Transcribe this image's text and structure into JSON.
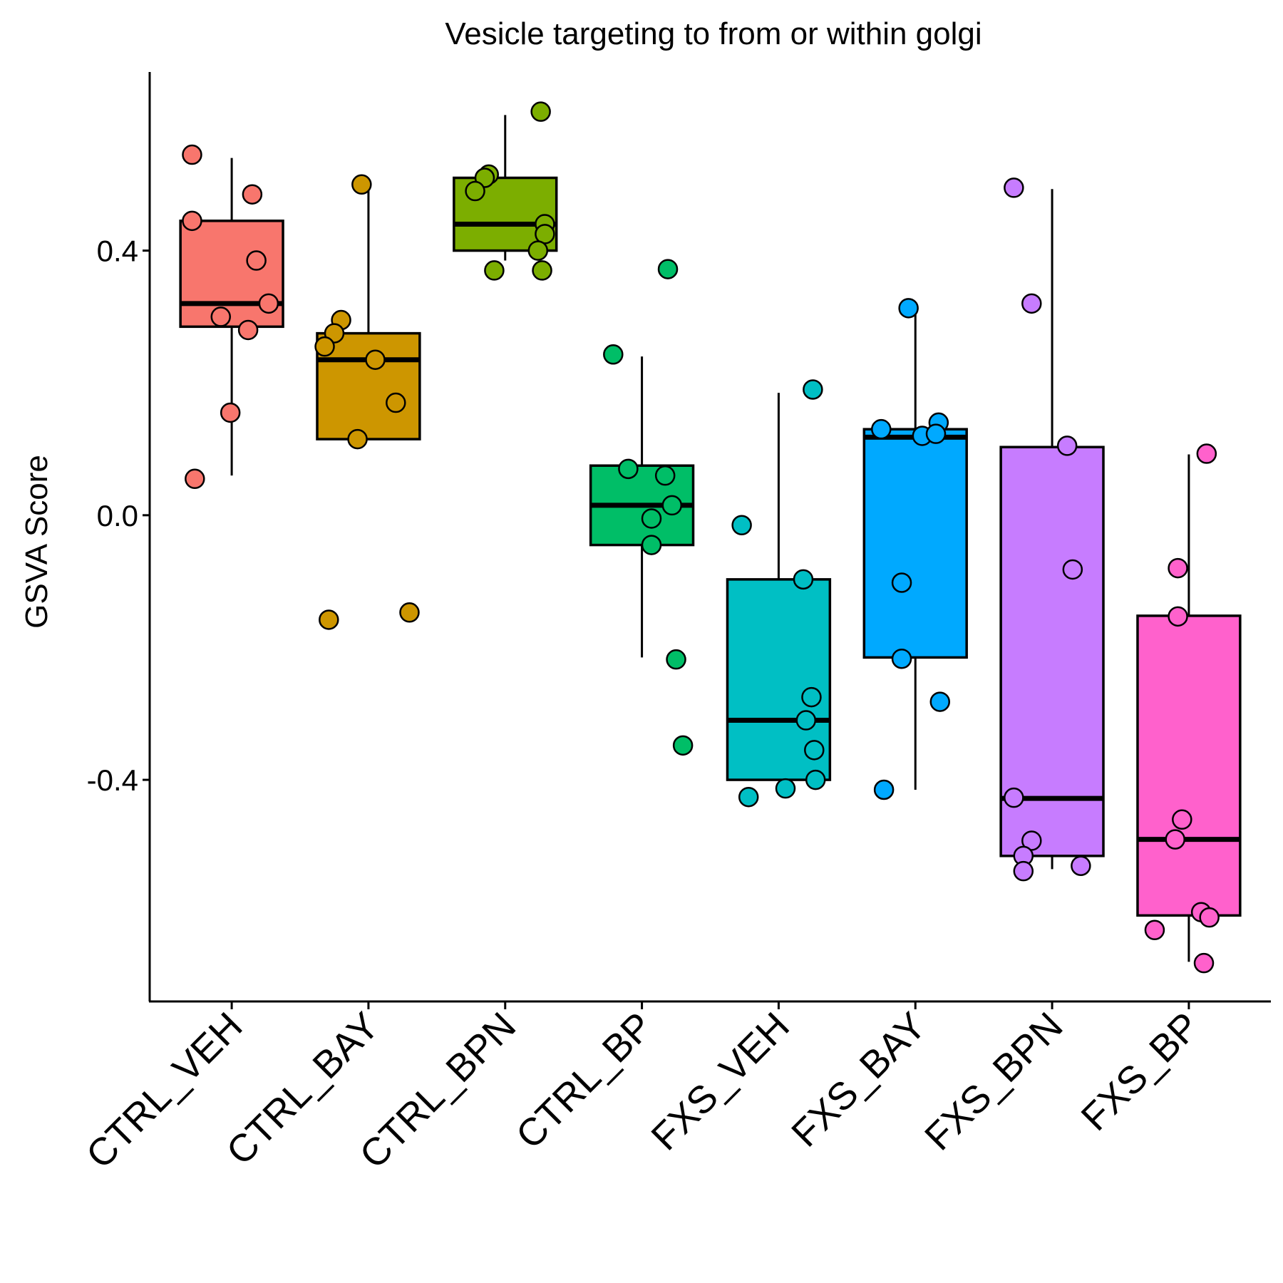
{
  "chart_data": {
    "type": "box",
    "title": "Vesicle targeting to from or within golgi",
    "xlabel": "",
    "ylabel": "GSVA Score",
    "ylim": [
      -0.735,
      0.67
    ],
    "yticks": [
      -0.4,
      0.0,
      0.4
    ],
    "ytick_labels": [
      "-0.4",
      "0.0",
      "0.4"
    ],
    "grid": false,
    "legend": "none",
    "categories": [
      "CTRL_VEH",
      "CTRL_BAY",
      "CTRL_BPN",
      "CTRL_BP",
      "FXS_VEH",
      "FXS_BAY",
      "FXS_BPN",
      "FXS_BP"
    ],
    "groups": [
      {
        "name": "CTRL_VEH",
        "color": "#F8766D",
        "box": {
          "whisker_low": 0.06,
          "q1": 0.285,
          "median": 0.32,
          "q3": 0.445,
          "whisker_high": 0.54
        },
        "points": [
          [
            -0.29,
            0.545
          ],
          [
            0.15,
            0.485
          ],
          [
            -0.29,
            0.445
          ],
          [
            0.18,
            0.385
          ],
          [
            0.27,
            0.32
          ],
          [
            -0.08,
            0.3
          ],
          [
            0.12,
            0.28
          ],
          [
            -0.01,
            0.155
          ],
          [
            -0.27,
            0.055
          ]
        ]
      },
      {
        "name": "CTRL_BAY",
        "color": "#CD9600",
        "box": {
          "whisker_low": 0.115,
          "q1": 0.115,
          "median": 0.235,
          "q3": 0.275,
          "whisker_high": 0.5
        },
        "points": [
          [
            -0.05,
            0.5
          ],
          [
            -0.2,
            0.295
          ],
          [
            -0.25,
            0.275
          ],
          [
            -0.32,
            0.255
          ],
          [
            0.05,
            0.235
          ],
          [
            0.2,
            0.17
          ],
          [
            -0.08,
            0.115
          ],
          [
            -0.29,
            -0.158
          ],
          [
            0.3,
            -0.147
          ]
        ]
      },
      {
        "name": "CTRL_BPN",
        "color": "#7CAE00",
        "box": {
          "whisker_low": 0.385,
          "q1": 0.4,
          "median": 0.44,
          "q3": 0.51,
          "whisker_high": 0.605
        },
        "points": [
          [
            0.26,
            0.61
          ],
          [
            -0.12,
            0.515
          ],
          [
            -0.15,
            0.51
          ],
          [
            -0.22,
            0.49
          ],
          [
            0.29,
            0.44
          ],
          [
            0.29,
            0.425
          ],
          [
            0.24,
            0.4
          ],
          [
            -0.08,
            0.37
          ],
          [
            0.27,
            0.37
          ]
        ]
      },
      {
        "name": "CTRL_BP",
        "color": "#00BE67",
        "box": {
          "whisker_low": -0.215,
          "q1": -0.045,
          "median": 0.015,
          "q3": 0.075,
          "whisker_high": 0.24
        },
        "points": [
          [
            0.19,
            0.372
          ],
          [
            -0.21,
            0.243
          ],
          [
            -0.1,
            0.07
          ],
          [
            0.17,
            0.06
          ],
          [
            0.22,
            0.015
          ],
          [
            0.07,
            -0.005
          ],
          [
            0.07,
            -0.045
          ],
          [
            0.25,
            -0.218
          ],
          [
            0.3,
            -0.348
          ]
        ]
      },
      {
        "name": "FXS_VEH",
        "color": "#00BFC4",
        "box": {
          "whisker_low": -0.4,
          "q1": -0.4,
          "median": -0.31,
          "q3": -0.097,
          "whisker_high": 0.185
        },
        "points": [
          [
            0.25,
            0.19
          ],
          [
            -0.27,
            -0.015
          ],
          [
            0.18,
            -0.097
          ],
          [
            0.24,
            -0.275
          ],
          [
            0.2,
            -0.31
          ],
          [
            0.26,
            -0.355
          ],
          [
            0.27,
            -0.4
          ],
          [
            0.05,
            -0.413
          ],
          [
            -0.22,
            -0.426
          ]
        ]
      },
      {
        "name": "FXS_BAY",
        "color": "#00A9FF",
        "box": {
          "whisker_low": -0.415,
          "q1": -0.215,
          "median": 0.118,
          "q3": 0.13,
          "whisker_high": 0.31
        },
        "points": [
          [
            -0.05,
            0.313
          ],
          [
            -0.25,
            0.13
          ],
          [
            0.17,
            0.14
          ],
          [
            0.05,
            0.12
          ],
          [
            0.15,
            0.123
          ],
          [
            -0.1,
            -0.102
          ],
          [
            -0.1,
            -0.217
          ],
          [
            0.18,
            -0.282
          ],
          [
            -0.23,
            -0.415
          ]
        ]
      },
      {
        "name": "FXS_BPN",
        "color": "#C77CFF",
        "box": {
          "whisker_low": -0.535,
          "q1": -0.515,
          "median": -0.428,
          "q3": 0.103,
          "whisker_high": 0.493
        },
        "points": [
          [
            -0.28,
            0.495
          ],
          [
            -0.15,
            0.32
          ],
          [
            0.11,
            0.105
          ],
          [
            0.15,
            -0.082
          ],
          [
            -0.28,
            -0.427
          ],
          [
            -0.15,
            -0.492
          ],
          [
            -0.21,
            -0.515
          ],
          [
            -0.21,
            -0.538
          ],
          [
            0.21,
            -0.53
          ]
        ]
      },
      {
        "name": "FXS_BP",
        "color": "#FF61CC",
        "box": {
          "whisker_low": -0.675,
          "q1": -0.605,
          "median": -0.49,
          "q3": -0.152,
          "whisker_high": 0.092
        },
        "points": [
          [
            0.13,
            0.093
          ],
          [
            -0.08,
            -0.08
          ],
          [
            -0.08,
            -0.153
          ],
          [
            -0.05,
            -0.46
          ],
          [
            -0.1,
            -0.49
          ],
          [
            0.09,
            -0.6
          ],
          [
            0.15,
            -0.608
          ],
          [
            -0.25,
            -0.627
          ],
          [
            0.11,
            -0.677
          ]
        ]
      }
    ]
  }
}
